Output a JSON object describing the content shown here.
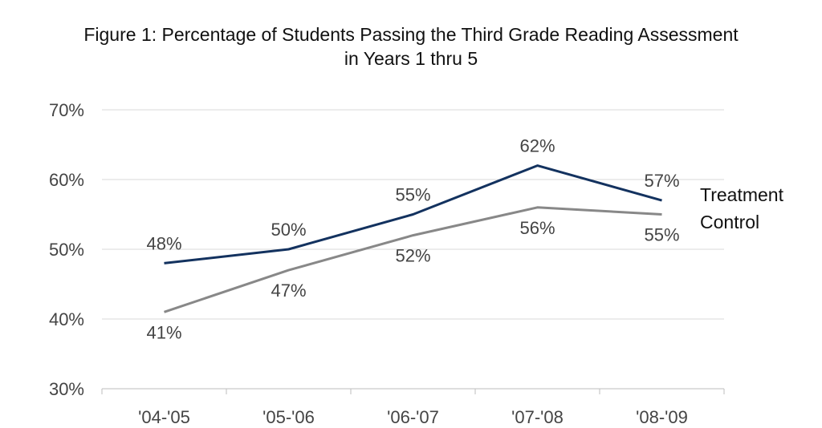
{
  "chart_data": {
    "type": "line",
    "title_line1": "Figure 1: Percentage of Students Passing the Third Grade Reading Assessment",
    "title_line2": "in Years 1 thru 5",
    "categories": [
      "'04-'05",
      "'05-'06",
      "'06-'07",
      "'07-'08",
      "'08-'09"
    ],
    "series": [
      {
        "name": "Treatment",
        "values": [
          48,
          50,
          55,
          62,
          57
        ],
        "labels": [
          "48%",
          "50%",
          "55%",
          "62%",
          "57%"
        ],
        "color": "#13325f"
      },
      {
        "name": "Control",
        "values": [
          41,
          47,
          52,
          56,
          55
        ],
        "labels": [
          "41%",
          "47%",
          "52%",
          "56%",
          "55%"
        ],
        "color": "#888888"
      }
    ],
    "ylim": [
      30,
      70
    ],
    "yticks": [
      30,
      40,
      50,
      60,
      70
    ],
    "ytick_labels": [
      "30%",
      "40%",
      "50%",
      "60%",
      "70%"
    ],
    "grid": true,
    "legend": "right"
  }
}
